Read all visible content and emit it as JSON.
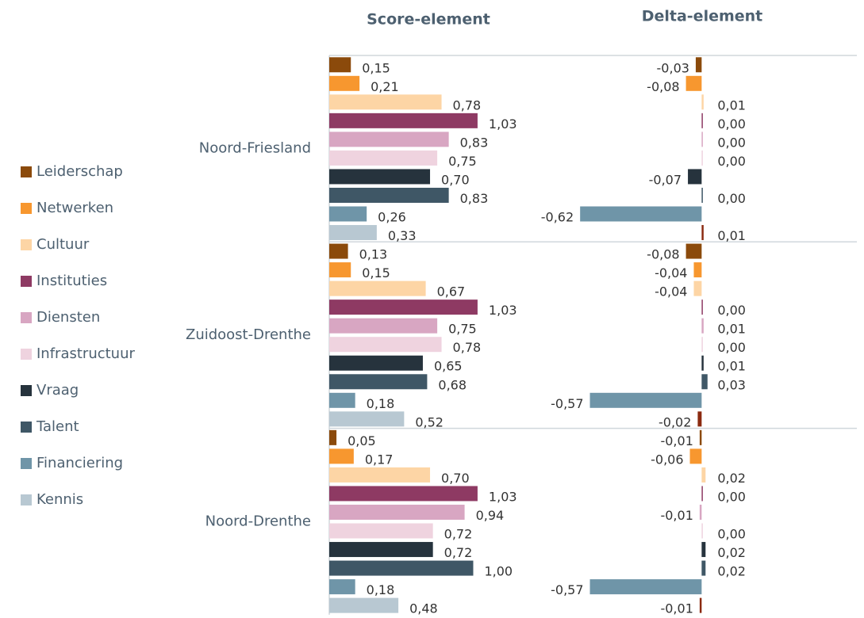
{
  "chart_data": [
    {
      "type": "bar",
      "title": "Score-element",
      "categories": [
        "Noord-Friesland",
        "Zuidoost-Drenthe",
        "Noord-Drenthe"
      ],
      "xlim": [
        0,
        1.35
      ],
      "series": [
        {
          "name": "Leiderschap",
          "color": "#8b4a0b",
          "values": [
            0.15,
            0.13,
            0.05
          ],
          "value_labels": [
            "0,15",
            "0,13",
            "0,05"
          ]
        },
        {
          "name": "Netwerken",
          "color": "#f7972f",
          "values": [
            0.21,
            0.15,
            0.17
          ],
          "value_labels": [
            "0,21",
            "0,15",
            "0,17"
          ]
        },
        {
          "name": "Cultuur",
          "color": "#fdd5a5",
          "values": [
            0.78,
            0.67,
            0.7
          ],
          "value_labels": [
            "0,78",
            "0,67",
            "0,70"
          ]
        },
        {
          "name": "Instituties",
          "color": "#8e3a63",
          "values": [
            1.03,
            1.03,
            1.03
          ],
          "value_labels": [
            "1,03",
            "1,03",
            "1,03"
          ]
        },
        {
          "name": "Diensten",
          "color": "#d8a6c2",
          "values": [
            0.83,
            0.75,
            0.94
          ],
          "value_labels": [
            "0,83",
            "0,75",
            "0,94"
          ]
        },
        {
          "name": "Infrastructuur",
          "color": "#efd3df",
          "values": [
            0.75,
            0.78,
            0.72
          ],
          "value_labels": [
            "0,75",
            "0,78",
            "0,72"
          ]
        },
        {
          "name": "Vraag",
          "color": "#26333d",
          "values": [
            0.7,
            0.65,
            0.72
          ],
          "value_labels": [
            "0,70",
            "0,65",
            "0,72"
          ]
        },
        {
          "name": "Talent",
          "color": "#3f5766",
          "values": [
            0.83,
            0.68,
            1.0
          ],
          "value_labels": [
            "0,83",
            "0,68",
            "1,00"
          ]
        },
        {
          "name": "Financiering",
          "color": "#6f95a8",
          "values": [
            0.26,
            0.18,
            0.18
          ],
          "value_labels": [
            "0,26",
            "0,18",
            "0,18"
          ]
        },
        {
          "name": "Kennis",
          "color": "#b8c8d2",
          "values": [
            0.33,
            0.52,
            0.48
          ],
          "value_labels": [
            "0,33",
            "0,52",
            "0,48"
          ]
        }
      ]
    },
    {
      "type": "bar",
      "title": "Delta-element",
      "xlim": [
        -0.9,
        0.8
      ],
      "series": [
        {
          "color": "#8b4a0b",
          "values": [
            -0.03,
            -0.08,
            -0.01
          ],
          "value_labels": [
            "-0,03",
            "-0,08",
            "-0,01"
          ]
        },
        {
          "color": "#f7972f",
          "values": [
            -0.08,
            -0.04,
            -0.06
          ],
          "value_labels": [
            "-0,08",
            "-0,04",
            "-0,06"
          ]
        },
        {
          "color": "#fdd5a5",
          "values": [
            0.01,
            -0.04,
            0.02
          ],
          "value_labels": [
            "0,01",
            "-0,04",
            "0,02"
          ]
        },
        {
          "color": "#8e3a63",
          "values": [
            0,
            0,
            0
          ],
          "value_labels": [
            "0,00",
            "0,00",
            "0,00"
          ]
        },
        {
          "color": "#d8a6c2",
          "values": [
            0,
            0.01,
            -0.01
          ],
          "value_labels": [
            "0,00",
            "0,01",
            "-0,01"
          ]
        },
        {
          "color": "#efd3df",
          "values": [
            0,
            0,
            0
          ],
          "value_labels": [
            "0,00",
            "0,00",
            "0,00"
          ]
        },
        {
          "color": "#26333d",
          "values": [
            -0.07,
            0.01,
            0.02
          ],
          "value_labels": [
            "-0,07",
            "0,01",
            "0,02"
          ]
        },
        {
          "color": "#3f5766",
          "values": [
            0,
            0.03,
            0.02
          ],
          "value_labels": [
            "0,00",
            "0,03",
            "0,02"
          ]
        },
        {
          "color": "#6f95a8",
          "values": [
            -0.62,
            -0.57,
            -0.57
          ],
          "value_labels": [
            "-0,62",
            "-0,57",
            "-0,57"
          ]
        },
        {
          "color": "#8b2a10",
          "values": [
            0.01,
            -0.02,
            -0.01
          ],
          "value_labels": [
            "0,01",
            "-0,02",
            "-0,01"
          ]
        }
      ]
    }
  ]
}
